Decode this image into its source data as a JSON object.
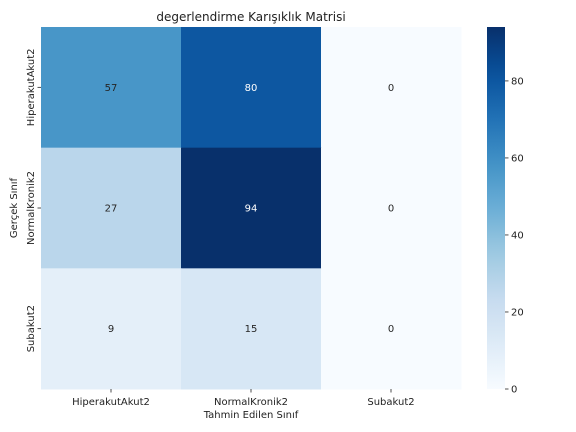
{
  "chart_data": {
    "type": "heatmap",
    "title": "degerlendirme Karışıklık Matrisi",
    "xlabel": "Tahmin Edilen Sınıf",
    "ylabel": "Gerçek Sınıf",
    "x_categories": [
      "HiperakutAkut2",
      "NormalKronik2",
      "Subakut2"
    ],
    "y_categories": [
      "HiperakutAkut2",
      "NormalKronik2",
      "Subakut2"
    ],
    "values": [
      [
        57,
        80,
        0
      ],
      [
        27,
        94,
        0
      ],
      [
        9,
        15,
        0
      ]
    ],
    "colormap": "Blues",
    "colorbar": {
      "range": [
        0,
        94
      ],
      "ticks": [
        0,
        20,
        40,
        60,
        80
      ]
    },
    "annotations": true
  }
}
